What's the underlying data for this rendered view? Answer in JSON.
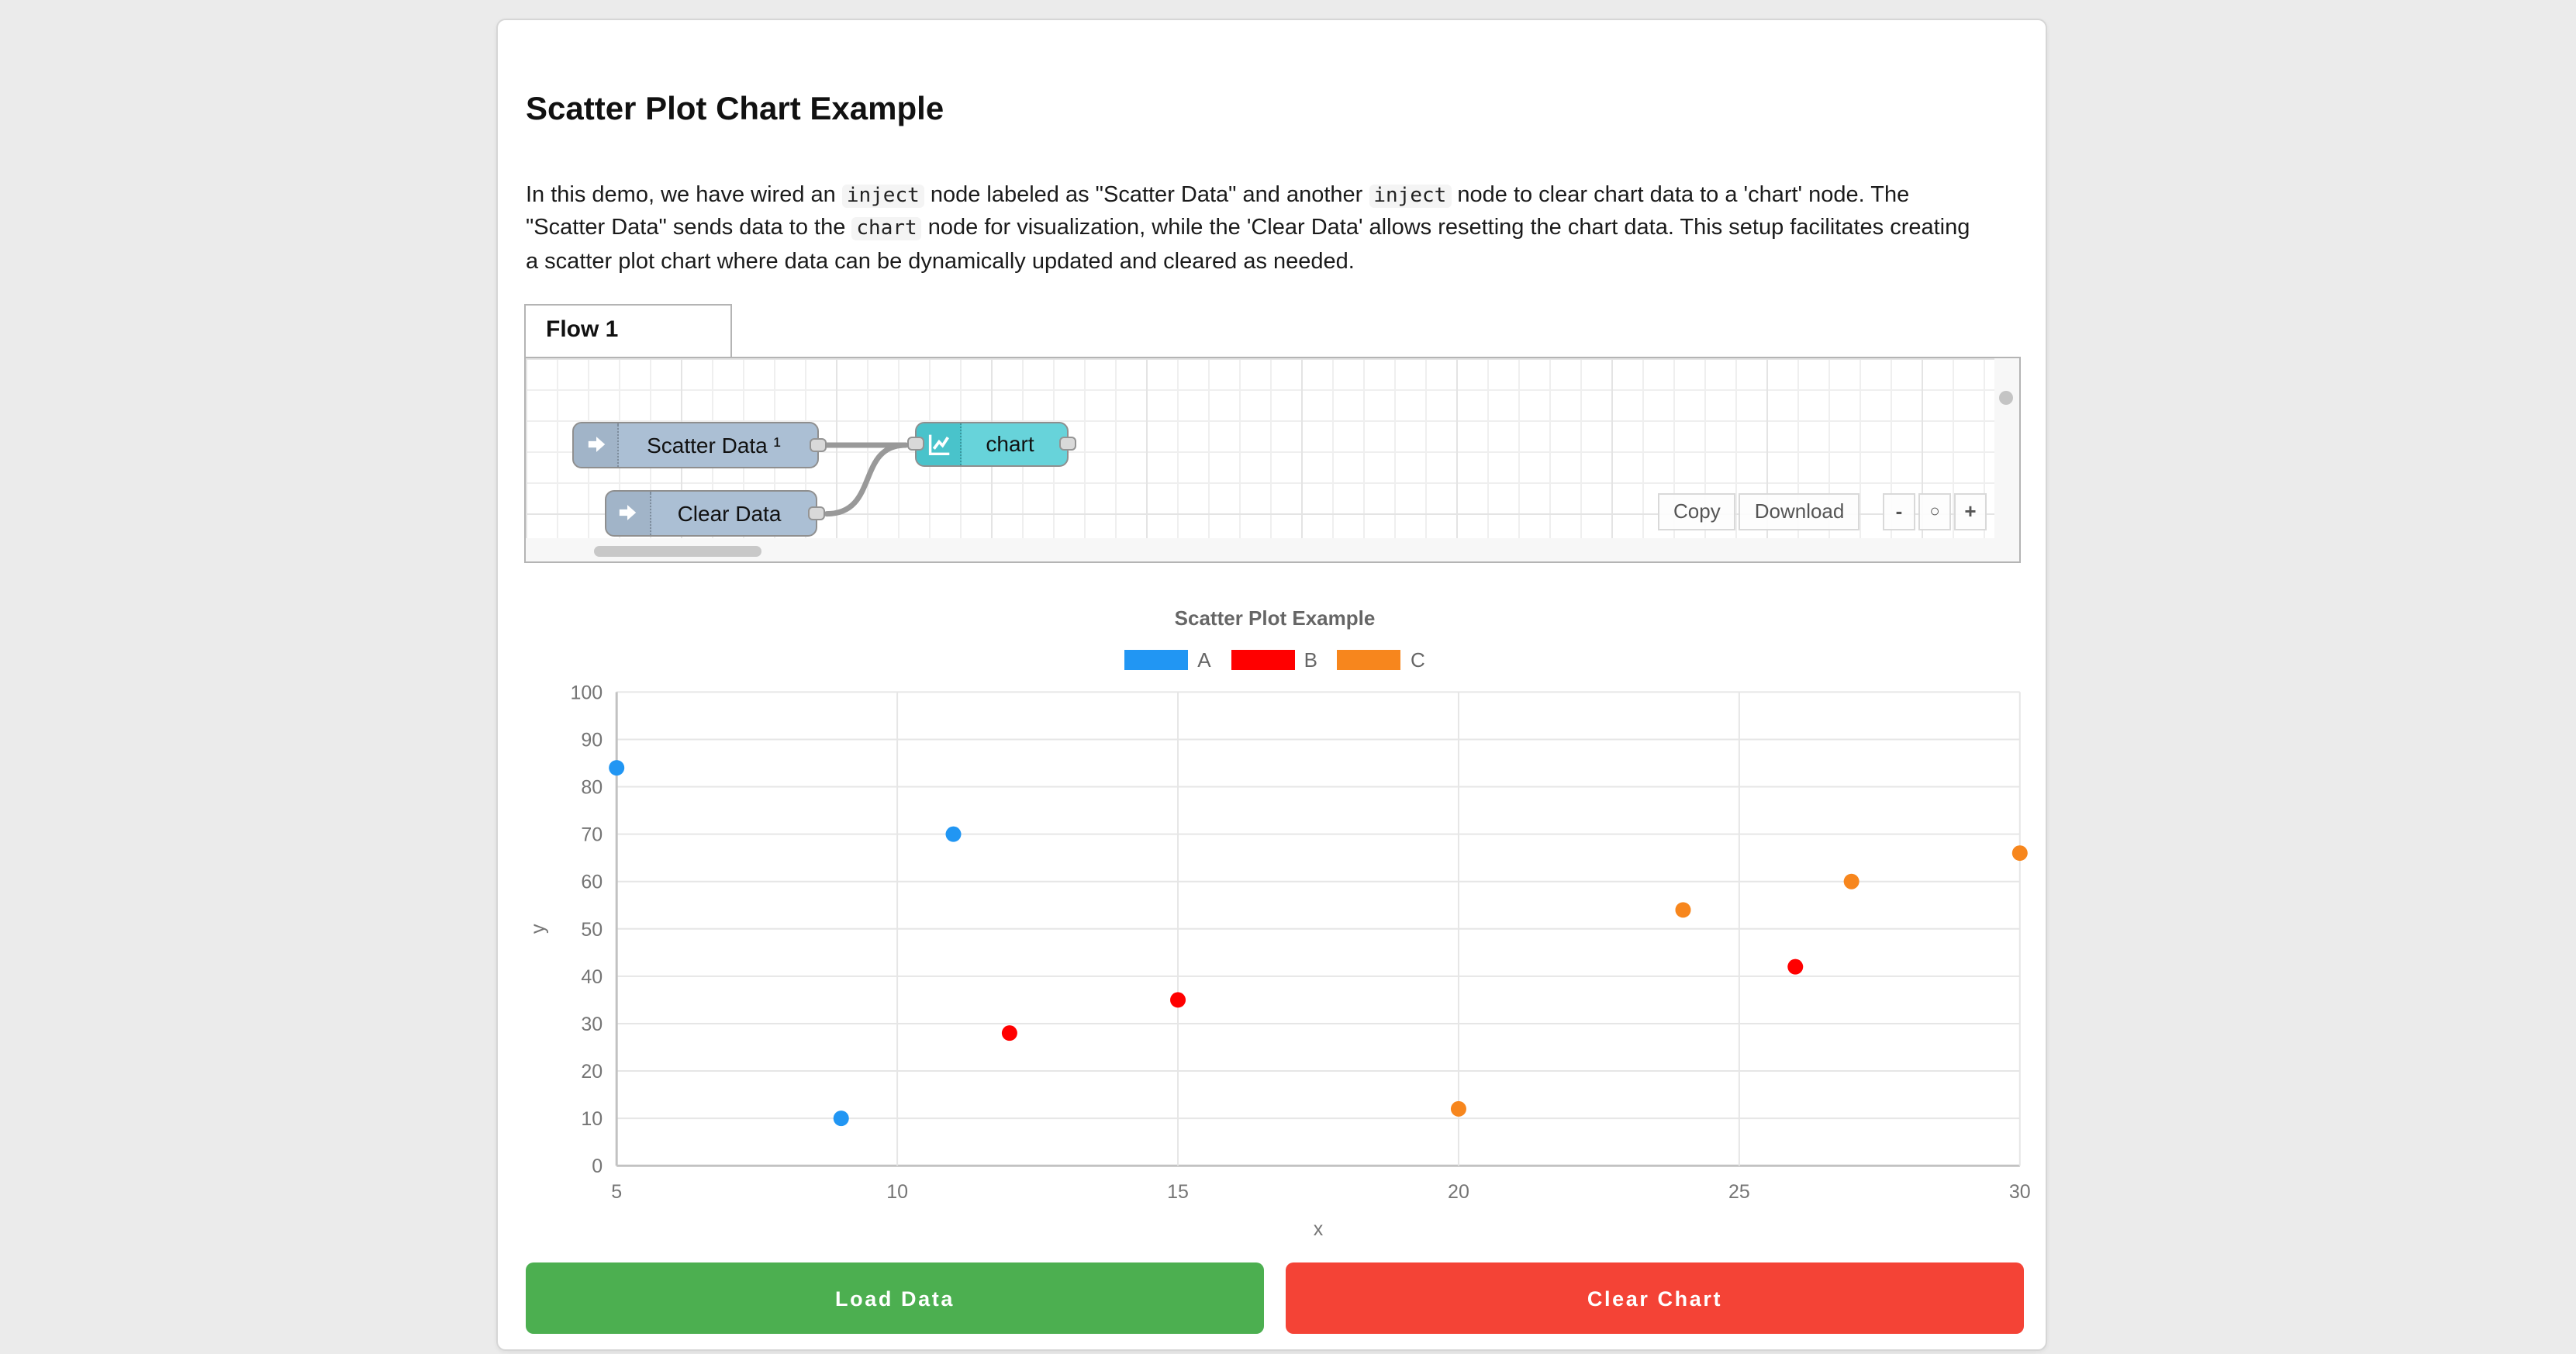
{
  "page": {
    "title": "Scatter Plot Chart Example"
  },
  "description": {
    "segments": [
      {
        "text": "In this demo, we have wired an "
      },
      {
        "text": "inject",
        "code": true
      },
      {
        "text": " node labeled as \"Scatter Data\" and another "
      },
      {
        "text": "inject",
        "code": true
      },
      {
        "text": " node to clear chart data to a 'chart' node. The \"Scatter Data\" sends data to the "
      },
      {
        "text": "chart",
        "code": true
      },
      {
        "text": " node for visualization, while the 'Clear Data' allows resetting the chart data. This setup facilitates creating a scatter plot chart where data can be dynamically updated and cleared as needed."
      }
    ]
  },
  "flow": {
    "tab_label": "Flow 1",
    "nodes": {
      "scatter": {
        "label": "Scatter Data ¹"
      },
      "clear": {
        "label": "Clear Data"
      },
      "chart": {
        "label": "chart"
      }
    },
    "toolbar": {
      "copy_label": "Copy",
      "download_label": "Download",
      "zoom_out_label": "-",
      "zoom_reset_label": "○",
      "zoom_in_label": "+"
    },
    "colors": {
      "inject_node": "#abbfd4",
      "chart_node": "#67d3da",
      "chart_node_icon": "#49c3cb",
      "wire": "#999999"
    }
  },
  "chart_data": {
    "type": "scatter",
    "title": "Scatter Plot Example",
    "xlabel": "x",
    "ylabel": "y",
    "xlim": [
      5,
      30
    ],
    "ylim": [
      0,
      100
    ],
    "xticks": [
      5,
      10,
      15,
      20,
      25,
      30
    ],
    "yticks": [
      0,
      10,
      20,
      30,
      40,
      50,
      60,
      70,
      80,
      90,
      100
    ],
    "grid": true,
    "legend_position": "top",
    "series": [
      {
        "name": "A",
        "color": "#2196f3",
        "points": [
          [
            5,
            84
          ],
          [
            9,
            10
          ],
          [
            11,
            70
          ]
        ]
      },
      {
        "name": "B",
        "color": "#ff0000",
        "points": [
          [
            12,
            28
          ],
          [
            15,
            35
          ],
          [
            26,
            42
          ]
        ]
      },
      {
        "name": "C",
        "color": "#f7861d",
        "points": [
          [
            20,
            12
          ],
          [
            24,
            54
          ],
          [
            27,
            60
          ],
          [
            30,
            66
          ]
        ]
      }
    ]
  },
  "buttons": {
    "load_label": "Load Data",
    "load_color": "#4caf50",
    "clear_label": "Clear Chart",
    "clear_color": "#f44336"
  }
}
